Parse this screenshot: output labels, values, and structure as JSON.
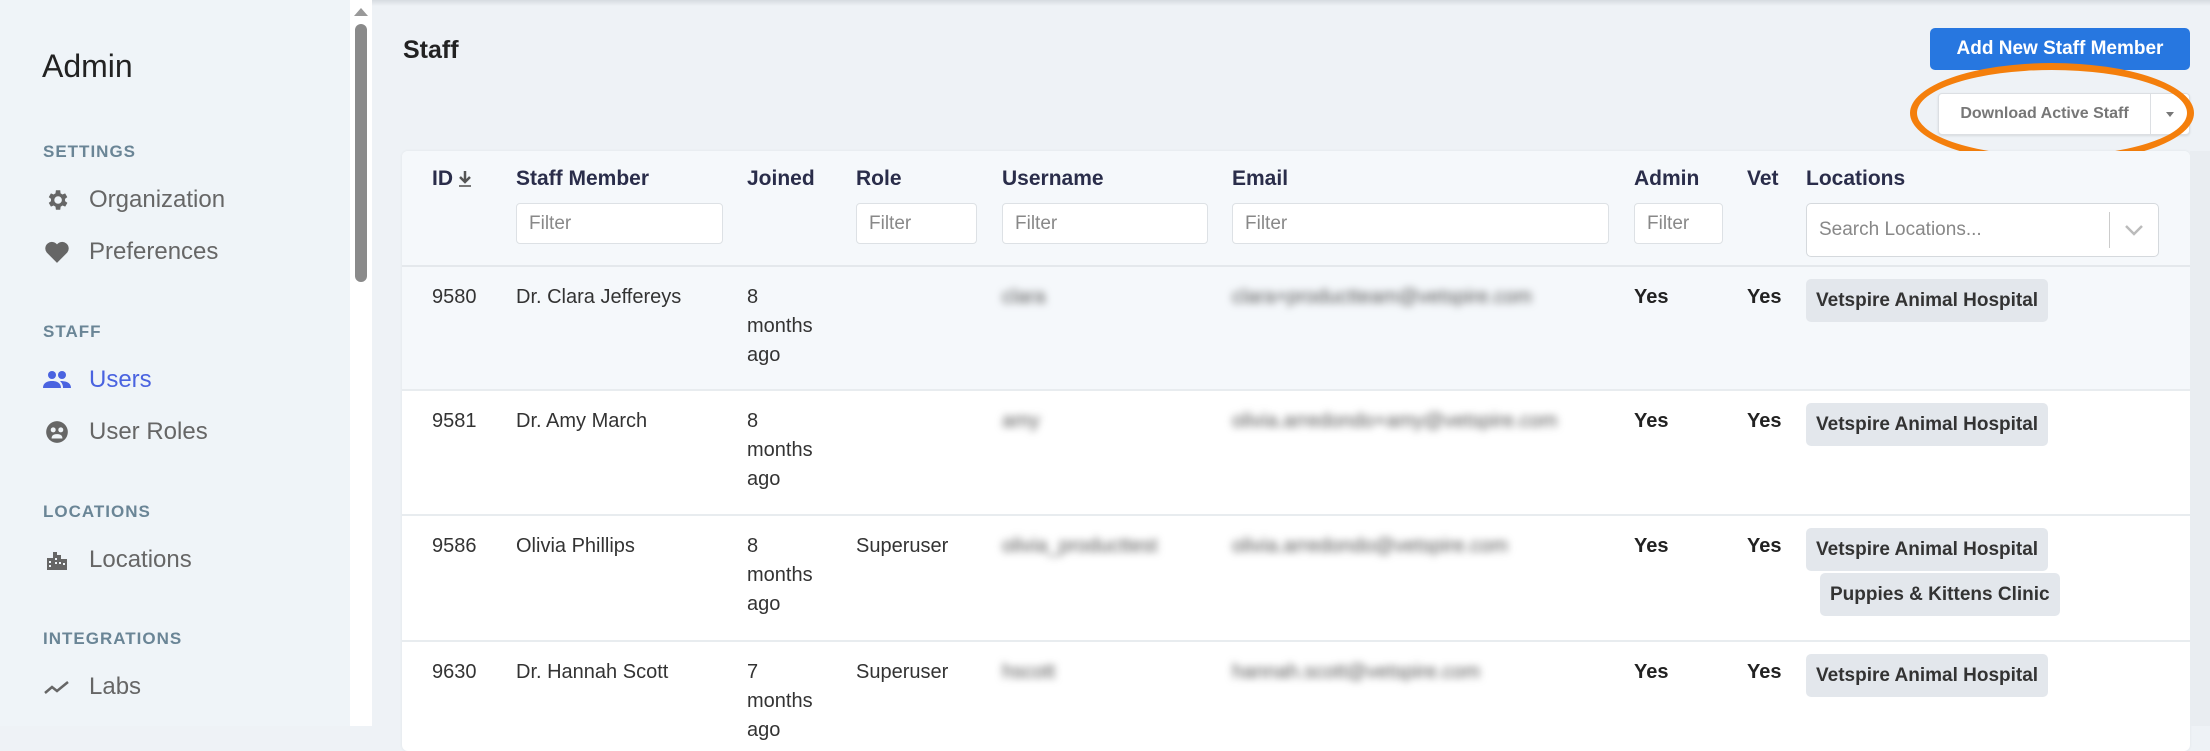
{
  "sidebar": {
    "title": "Admin",
    "sections": [
      {
        "label": "SETTINGS",
        "items": [
          {
            "label": "Organization",
            "icon": "gear-icon"
          },
          {
            "label": "Preferences",
            "icon": "heart-icon"
          }
        ]
      },
      {
        "label": "STAFF",
        "items": [
          {
            "label": "Users",
            "icon": "users-icon",
            "active": true
          },
          {
            "label": "User Roles",
            "icon": "user-roles-icon"
          }
        ]
      },
      {
        "label": "LOCATIONS",
        "items": [
          {
            "label": "Locations",
            "icon": "building-icon"
          }
        ]
      },
      {
        "label": "INTEGRATIONS",
        "items": [
          {
            "label": "Labs",
            "icon": "chart-line-icon"
          }
        ]
      }
    ]
  },
  "header": {
    "title": "Staff",
    "add_button": "Add New Staff Member",
    "download_button": "Download Active Staff"
  },
  "colors": {
    "accent": "#2777e0",
    "active_nav": "#4a63e0",
    "highlight": "#f47f0c",
    "badge_bg": "#e3e7ec"
  },
  "table": {
    "columns": [
      "ID",
      "Staff Member",
      "Joined",
      "Role",
      "Username",
      "Email",
      "Admin",
      "Vet",
      "Locations"
    ],
    "sort_column": "ID",
    "sort_direction": "descending",
    "filter_placeholder": "Filter",
    "locations_placeholder": "Search Locations...",
    "rows": [
      {
        "id": "9580",
        "name": "Dr. Clara Jeffereys",
        "joined": "8 months ago",
        "role": "",
        "username": "clara",
        "email": "clara+productteam@vetspire.com",
        "admin": "Yes",
        "vet": "Yes",
        "locations": [
          "Vetspire Animal Hospital"
        ]
      },
      {
        "id": "9581",
        "name": "Dr. Amy March",
        "joined": "8 months ago",
        "role": "",
        "username": "amy",
        "email": "olivia.arredondo+amy@vetspire.com",
        "admin": "Yes",
        "vet": "Yes",
        "locations": [
          "Vetspire Animal Hospital"
        ]
      },
      {
        "id": "9586",
        "name": "Olivia Phillips",
        "joined": "8 months ago",
        "role": "Superuser",
        "username": "olivia_producttest",
        "email": "olivia.arredondo@vetspire.com",
        "admin": "Yes",
        "vet": "Yes",
        "locations": [
          "Vetspire Animal Hospital",
          "Puppies & Kittens Clinic"
        ]
      },
      {
        "id": "9630",
        "name": "Dr. Hannah Scott",
        "joined": "7 months ago",
        "role": "Superuser",
        "username": "hscott",
        "email": "hannah.scott@vetspire.com",
        "admin": "Yes",
        "vet": "Yes",
        "locations": [
          "Vetspire Animal Hospital"
        ]
      }
    ]
  }
}
